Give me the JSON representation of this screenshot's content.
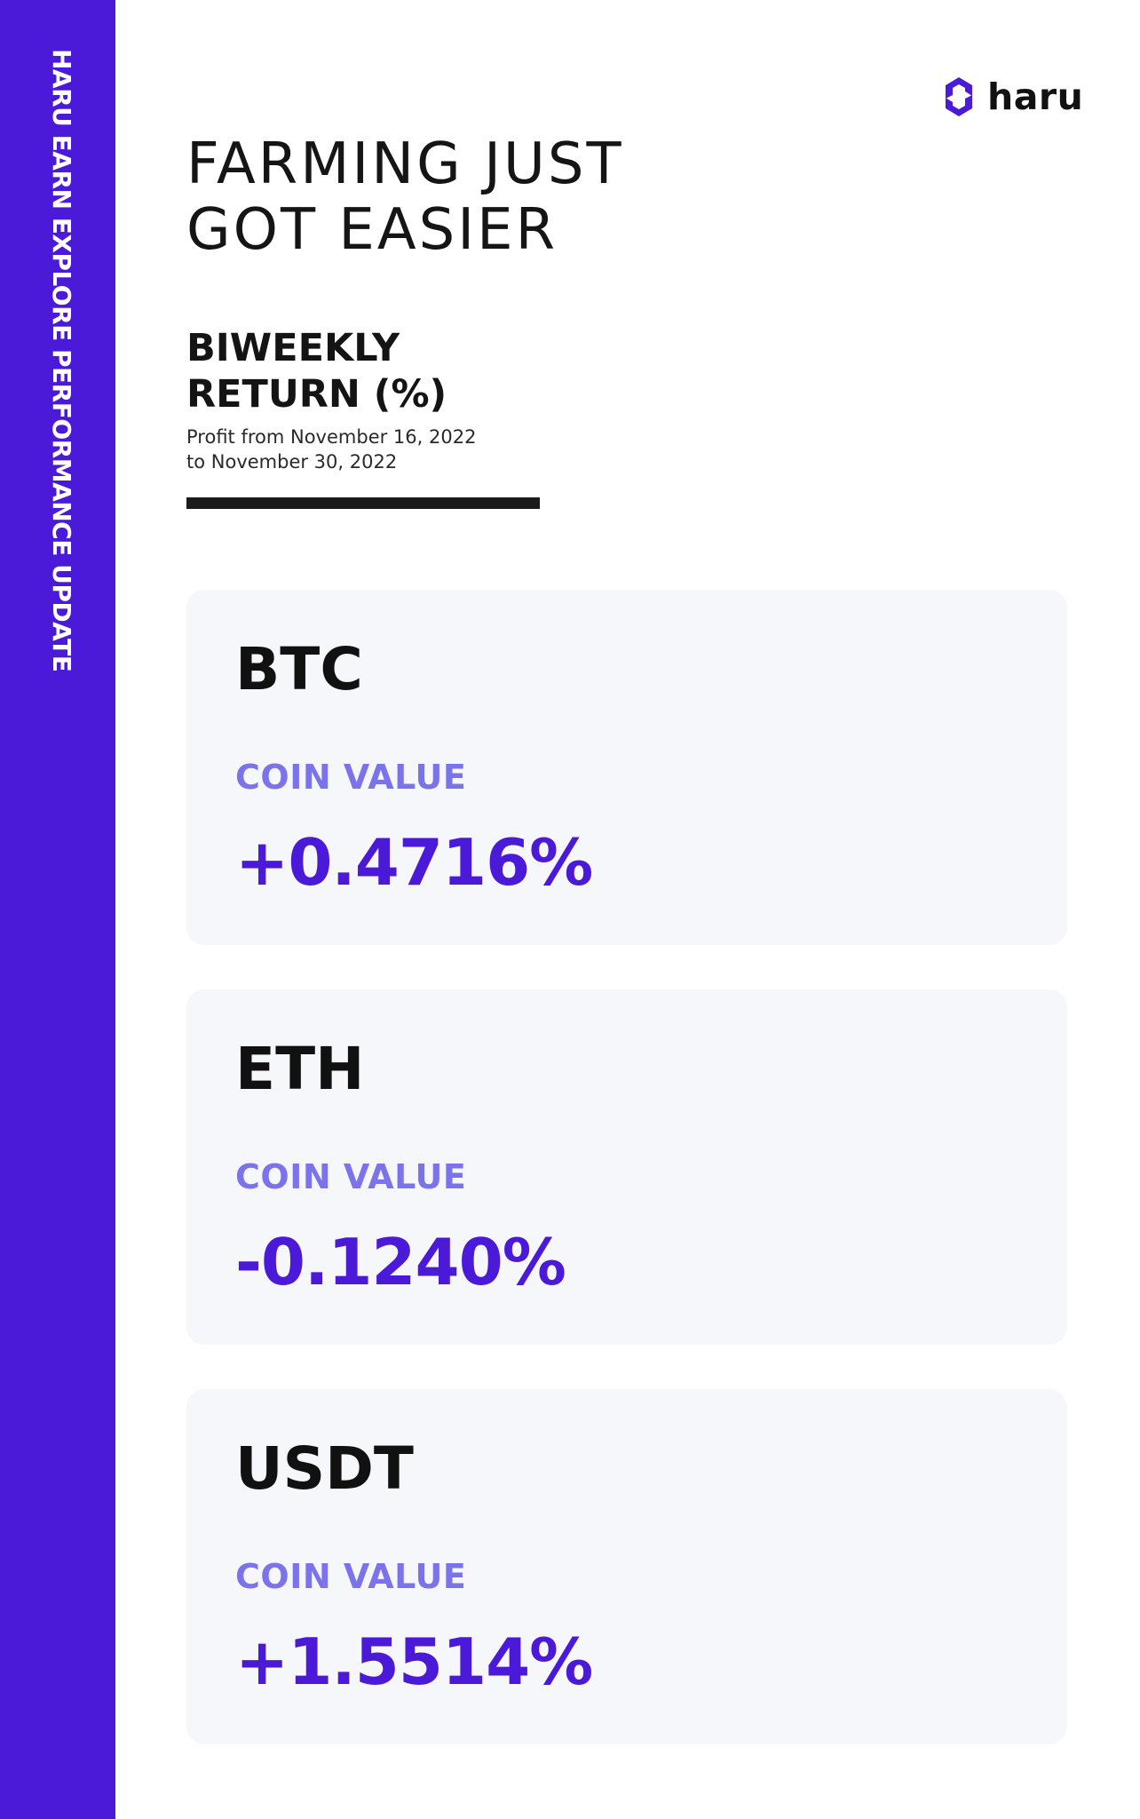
{
  "sidebar": {
    "text": "HARU EARN EXPLORE PERFORMANCE UPDATE"
  },
  "brand": {
    "name": "haru",
    "icon": "haru-hexagon-logo-icon"
  },
  "headline": {
    "line1": "FARMING JUST",
    "line2": "GOT EASIER"
  },
  "subheading": {
    "line1": "BIWEEKLY",
    "line2": "RETURN (%)"
  },
  "period": {
    "line1": "Profit from November 16, 2022",
    "line2": "to November 30, 2022"
  },
  "colors": {
    "sidebar": "#4a1ad8",
    "accent": "#4a1ad8",
    "label": "#7b73ea",
    "card": "#f6f7fb"
  },
  "coins": [
    {
      "name": "BTC",
      "label": "COIN VALUE",
      "value": "+0.4716%"
    },
    {
      "name": "ETH",
      "label": "COIN VALUE",
      "value": "-0.1240%"
    },
    {
      "name": "USDT",
      "label": "COIN VALUE",
      "value": "+1.5514%"
    }
  ]
}
